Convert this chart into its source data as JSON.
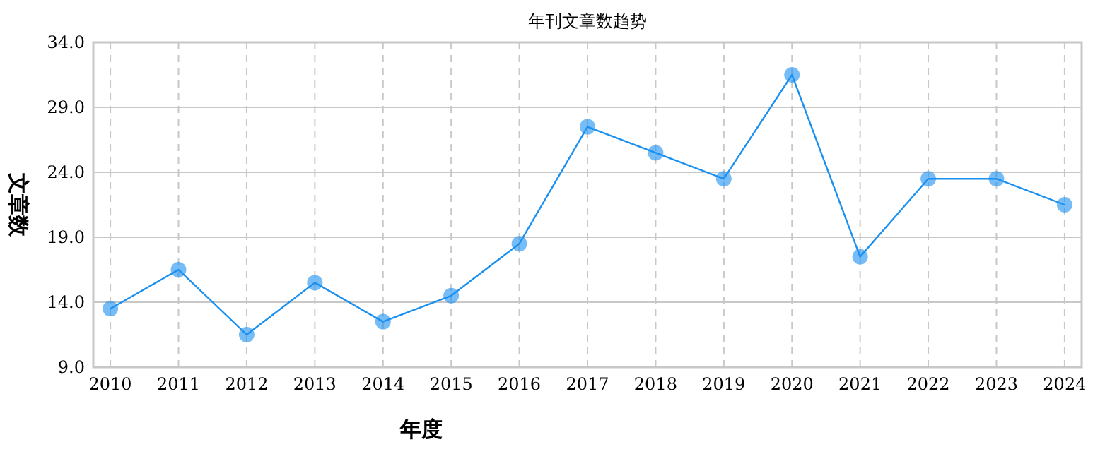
{
  "chart_data": {
    "type": "line",
    "title": "年刊文章数趋势",
    "xlabel": "年度",
    "ylabel": "文章数",
    "categories": [
      "2010",
      "2011",
      "2012",
      "2013",
      "2014",
      "2015",
      "2016",
      "2017",
      "2018",
      "2019",
      "2020",
      "2021",
      "2022",
      "2023",
      "2024"
    ],
    "series": [
      {
        "color": "#1a90f0",
        "values": [
          13.5,
          16.5,
          11.5,
          15.5,
          12.5,
          14.5,
          18.5,
          27.5,
          25.5,
          23.5,
          31.5,
          17.5,
          23.5,
          23.5,
          21.5
        ]
      }
    ],
    "ylim": [
      9,
      34
    ],
    "yticks": [
      {
        "value": 9,
        "label": "9.0"
      },
      {
        "value": 14,
        "label": "14.0"
      },
      {
        "value": 19,
        "label": "19.0"
      },
      {
        "value": 24,
        "label": "24.0"
      },
      {
        "value": 29,
        "label": "29.0"
      },
      {
        "value": 34,
        "label": "34.0"
      }
    ],
    "grid": true,
    "marker": "circle",
    "line_style": "solid"
  }
}
